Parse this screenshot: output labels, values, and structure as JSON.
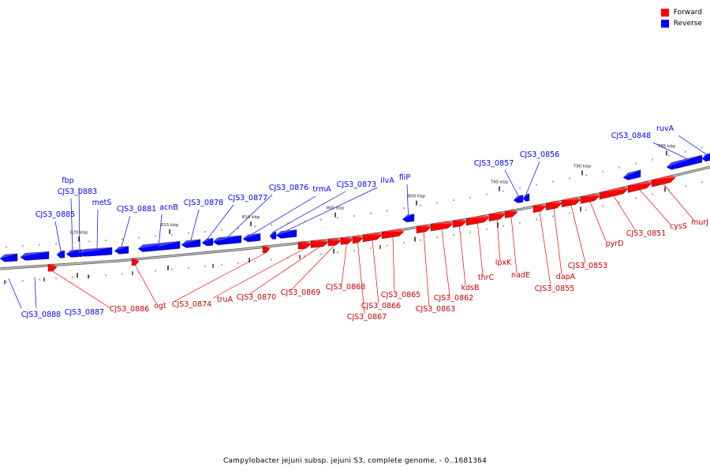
{
  "colors": {
    "forward": "#ff0000",
    "reverse": "#0000ff",
    "backbone": "#888888"
  },
  "legend": [
    {
      "label": "Forward",
      "color": "#ff0000"
    },
    {
      "label": "Reverse",
      "color": "#0000ff"
    }
  ],
  "caption": "Campylobacter jejuni subsp. jejuni S3, complete genome. - 0..1681364",
  "scale_labels": [
    "820 kbp",
    "815 kbp",
    "810 kbp",
    "805 kbp",
    "800 kbp",
    "795 kbp",
    "790 kbp",
    "785 kbp"
  ],
  "reverse_genes": [
    {
      "label": "CJS3_0888",
      "side": "below"
    },
    {
      "label": "CJS3_0887",
      "side": "below"
    },
    {
      "label": "CJS3_0885",
      "side": "above"
    },
    {
      "label": "CJS3_0883",
      "side": "above"
    },
    {
      "label": "fbp",
      "side": "above"
    },
    {
      "label": "metS",
      "side": "above"
    },
    {
      "label": "CJS3_0881",
      "side": "above"
    },
    {
      "label": "acnB",
      "side": "above"
    },
    {
      "label": "CJS3_0878",
      "side": "above"
    },
    {
      "label": "CJS3_0877",
      "side": "above"
    },
    {
      "label": "CJS3_0876",
      "side": "above"
    },
    {
      "label": "trmA",
      "side": "above"
    },
    {
      "label": "CJS3_0873",
      "side": "above"
    },
    {
      "label": "ilvA",
      "side": "above"
    },
    {
      "label": "fliP",
      "side": "above"
    },
    {
      "label": "CJS3_0857",
      "side": "above"
    },
    {
      "label": "CJS3_0856",
      "side": "above"
    },
    {
      "label": "CJS3_0848",
      "side": "above"
    },
    {
      "label": "ruvA",
      "side": "above"
    }
  ],
  "forward_genes": [
    {
      "label": "CJS3_0886"
    },
    {
      "label": "ogt"
    },
    {
      "label": "CJS3_0874"
    },
    {
      "label": "truA"
    },
    {
      "label": "CJS3_0870"
    },
    {
      "label": "CJS3_0869"
    },
    {
      "label": "CJS3_0868"
    },
    {
      "label": "CJS3_0867"
    },
    {
      "label": "CJS3_0866"
    },
    {
      "label": "CJS3_0865"
    },
    {
      "label": "CJS3_0863"
    },
    {
      "label": "CJS3_0862"
    },
    {
      "label": "kdsB"
    },
    {
      "label": "thrC"
    },
    {
      "label": "lpxK"
    },
    {
      "label": "nadE"
    },
    {
      "label": "CJS3_0855"
    },
    {
      "label": "dapA"
    },
    {
      "label": "CJS3_0853"
    },
    {
      "label": "pyrD"
    },
    {
      "label": "CJS3_0851"
    },
    {
      "label": "cysS"
    },
    {
      "label": "murJ"
    }
  ]
}
